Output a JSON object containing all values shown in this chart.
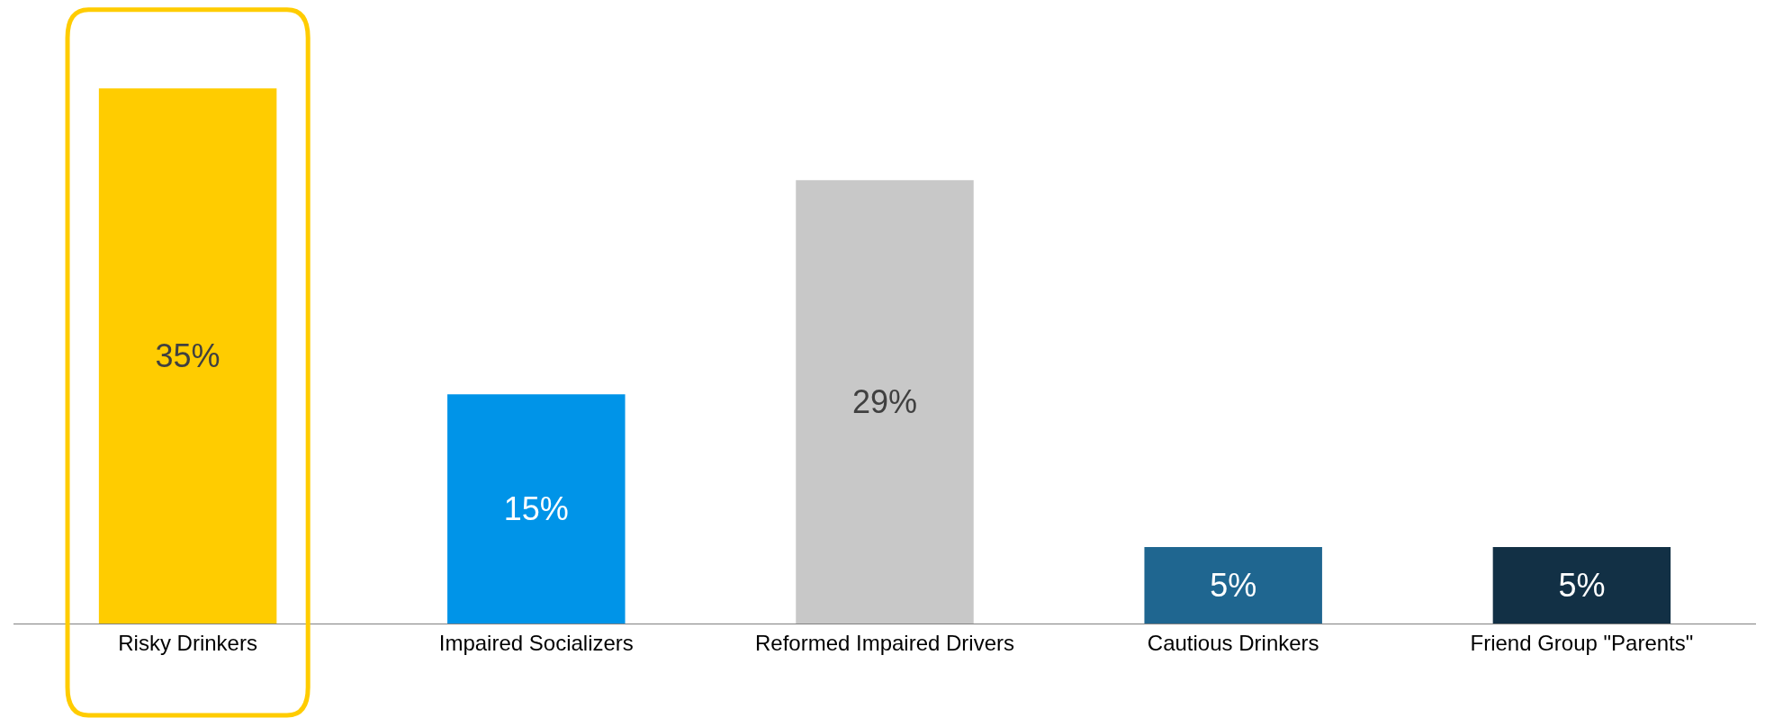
{
  "chart_data": {
    "type": "bar",
    "categories": [
      "Risky Drinkers",
      "Impaired Socializers",
      "Reformed Impaired Drivers",
      "Cautious Drinkers",
      "Friend Group \"Parents\""
    ],
    "values": [
      35,
      15,
      29,
      5,
      5
    ],
    "colors": [
      "#ffcc00",
      "#0094e8",
      "#c8c8c8",
      "#1f6690",
      "#123045"
    ],
    "value_labels": [
      "35%",
      "15%",
      "29%",
      "5%",
      "5%"
    ],
    "tick_labels": "x"
  }
}
